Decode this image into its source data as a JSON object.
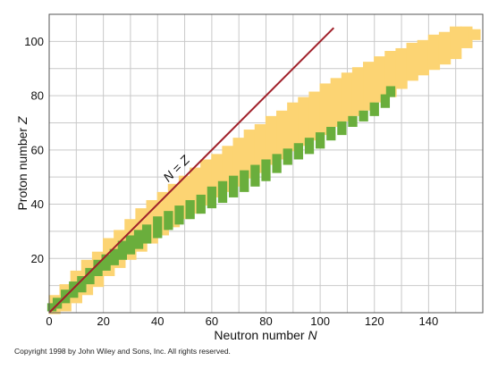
{
  "chart_data": {
    "type": "scatter",
    "title": "",
    "xlabel_main": "Neutron number ",
    "xlabel_var": "N",
    "ylabel_main": "Proton number ",
    "ylabel_var": "Z",
    "xlim": [
      0,
      160
    ],
    "ylim": [
      0,
      110
    ],
    "x_ticks": [
      0,
      20,
      40,
      60,
      80,
      100,
      120,
      140
    ],
    "y_ticks": [
      20,
      40,
      60,
      80,
      100
    ],
    "grid_step": 10,
    "grid": true,
    "diagonal_line": {
      "label": "N = Z",
      "from": [
        0,
        0
      ],
      "to": [
        105,
        105
      ],
      "color": "#a0202a"
    },
    "colors": {
      "unstable": "#fcd473",
      "stable": "#6aae3c",
      "grid": "#c9c9c9"
    },
    "unstable_band": [
      [
        2,
        0,
        6
      ],
      [
        6,
        1,
        10
      ],
      [
        10,
        4,
        15
      ],
      [
        14,
        7,
        19
      ],
      [
        18,
        10,
        22
      ],
      [
        22,
        14,
        27
      ],
      [
        26,
        17,
        30
      ],
      [
        30,
        20,
        34
      ],
      [
        34,
        23,
        38
      ],
      [
        38,
        26,
        41
      ],
      [
        42,
        29,
        44
      ],
      [
        46,
        32,
        47
      ],
      [
        50,
        35,
        50
      ],
      [
        54,
        37,
        53
      ],
      [
        58,
        40,
        56
      ],
      [
        62,
        43,
        58
      ],
      [
        66,
        45,
        61
      ],
      [
        70,
        47,
        64
      ],
      [
        74,
        50,
        67
      ],
      [
        78,
        52,
        69
      ],
      [
        82,
        55,
        72
      ],
      [
        86,
        57,
        74
      ],
      [
        90,
        60,
        77
      ],
      [
        94,
        62,
        79
      ],
      [
        98,
        64,
        81
      ],
      [
        102,
        66,
        84
      ],
      [
        106,
        69,
        86
      ],
      [
        110,
        71,
        88
      ],
      [
        114,
        73,
        90
      ],
      [
        118,
        75,
        92
      ],
      [
        122,
        78,
        94
      ],
      [
        126,
        80,
        96
      ],
      [
        130,
        83,
        97
      ],
      [
        134,
        86,
        99
      ],
      [
        138,
        88,
        100
      ],
      [
        142,
        90,
        102
      ],
      [
        146,
        92,
        103
      ],
      [
        150,
        94,
        105
      ],
      [
        154,
        98,
        105
      ],
      [
        157,
        101,
        104
      ]
    ],
    "stable_band": [
      [
        1,
        1,
        3
      ],
      [
        3,
        2,
        5
      ],
      [
        6,
        4,
        8
      ],
      [
        9,
        6,
        11
      ],
      [
        12,
        8,
        13
      ],
      [
        15,
        11,
        16
      ],
      [
        18,
        14,
        19
      ],
      [
        21,
        16,
        21
      ],
      [
        24,
        18,
        23
      ],
      [
        27,
        20,
        26
      ],
      [
        30,
        22,
        28
      ],
      [
        33,
        24,
        30
      ],
      [
        36,
        26,
        32
      ],
      [
        40,
        28,
        35
      ],
      [
        44,
        31,
        37
      ],
      [
        48,
        33,
        39
      ],
      [
        52,
        35,
        41
      ],
      [
        56,
        37,
        43
      ],
      [
        60,
        39,
        46
      ],
      [
        64,
        41,
        48
      ],
      [
        68,
        43,
        50
      ],
      [
        72,
        45,
        52
      ],
      [
        76,
        47,
        54
      ],
      [
        80,
        49,
        56
      ],
      [
        84,
        52,
        58
      ],
      [
        88,
        55,
        60
      ],
      [
        92,
        57,
        62
      ],
      [
        96,
        59,
        64
      ],
      [
        100,
        61,
        66
      ],
      [
        104,
        64,
        68
      ],
      [
        108,
        66,
        70
      ],
      [
        112,
        69,
        72
      ],
      [
        116,
        71,
        74
      ],
      [
        120,
        73,
        77
      ],
      [
        124,
        76,
        80
      ],
      [
        126,
        80,
        83
      ]
    ]
  },
  "footer": {
    "copyright": "Copyright 1998 by John Wiley and Sons, Inc.  All rights reserved."
  }
}
